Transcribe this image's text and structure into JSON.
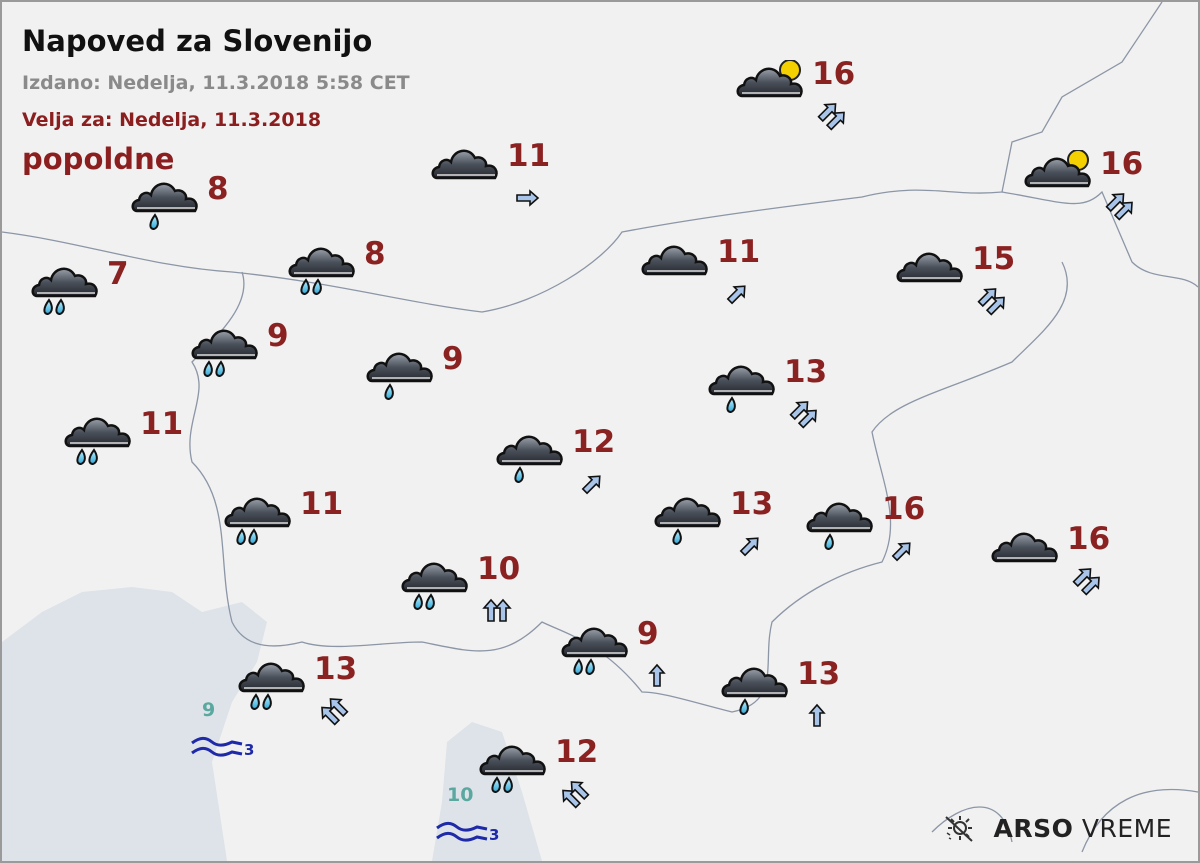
{
  "header": {
    "title": "Napoved za Slovenijo",
    "issued": "Izdano: Nedelja, 11.3.2018 5:58 CET",
    "valid_for": "Velja za: Nedelja, 11.3.2018",
    "period": "popoldne"
  },
  "colors": {
    "temperature": "#8b2222",
    "sea_temperature": "#5aa8a0",
    "waves": "#1f2aa8",
    "sea": "#dde3e8",
    "land": "#f1f1f1"
  },
  "stations": [
    {
      "icon": "rain-light",
      "temp": "8",
      "wind": null
    },
    {
      "icon": "rain",
      "temp": "7",
      "wind": null
    },
    {
      "icon": "cloudy",
      "temp": "11",
      "wind": {
        "toward": "E",
        "strength": 1
      }
    },
    {
      "icon": "partly-cloudy",
      "temp": "16",
      "wind": {
        "toward": "NE",
        "strength": 2
      }
    },
    {
      "icon": "partly-cloudy",
      "temp": "16",
      "wind": {
        "toward": "NE",
        "strength": 2
      }
    },
    {
      "icon": "rain",
      "temp": "8",
      "wind": null
    },
    {
      "icon": "cloudy",
      "temp": "11",
      "wind": {
        "toward": "NE",
        "strength": 1
      }
    },
    {
      "icon": "cloudy",
      "temp": "15",
      "wind": {
        "toward": "NE",
        "strength": 2
      }
    },
    {
      "icon": "rain",
      "temp": "9",
      "wind": null
    },
    {
      "icon": "rain-light",
      "temp": "9",
      "wind": null
    },
    {
      "icon": "rain",
      "temp": "11",
      "wind": null
    },
    {
      "icon": "rain-light",
      "temp": "13",
      "wind": {
        "toward": "NE",
        "strength": 2
      }
    },
    {
      "icon": "rain-light",
      "temp": "12",
      "wind": {
        "toward": "NE",
        "strength": 1
      }
    },
    {
      "icon": "rain",
      "temp": "11",
      "wind": null
    },
    {
      "icon": "rain-light",
      "temp": "13",
      "wind": {
        "toward": "NE",
        "strength": 1
      }
    },
    {
      "icon": "rain-light",
      "temp": "16",
      "wind": {
        "toward": "NE",
        "strength": 1
      }
    },
    {
      "icon": "cloudy",
      "temp": "16",
      "wind": {
        "toward": "NE",
        "strength": 2
      }
    },
    {
      "icon": "rain",
      "temp": "10",
      "wind": {
        "toward": "N",
        "strength": 2
      }
    },
    {
      "icon": "rain",
      "temp": "9",
      "wind": {
        "toward": "N",
        "strength": 1
      }
    },
    {
      "icon": "rain",
      "temp": "13",
      "wind": {
        "toward": "NW",
        "strength": 2
      }
    },
    {
      "icon": "rain-light",
      "temp": "13",
      "wind": {
        "toward": "N",
        "strength": 1
      }
    },
    {
      "icon": "rain",
      "temp": "12",
      "wind": {
        "toward": "NW",
        "strength": 2
      }
    }
  ],
  "sea": [
    {
      "temp": "9",
      "waves": "3"
    },
    {
      "temp": "10",
      "waves": "3"
    }
  ],
  "logo": {
    "bold": "ARSO",
    "light": "VREME"
  }
}
